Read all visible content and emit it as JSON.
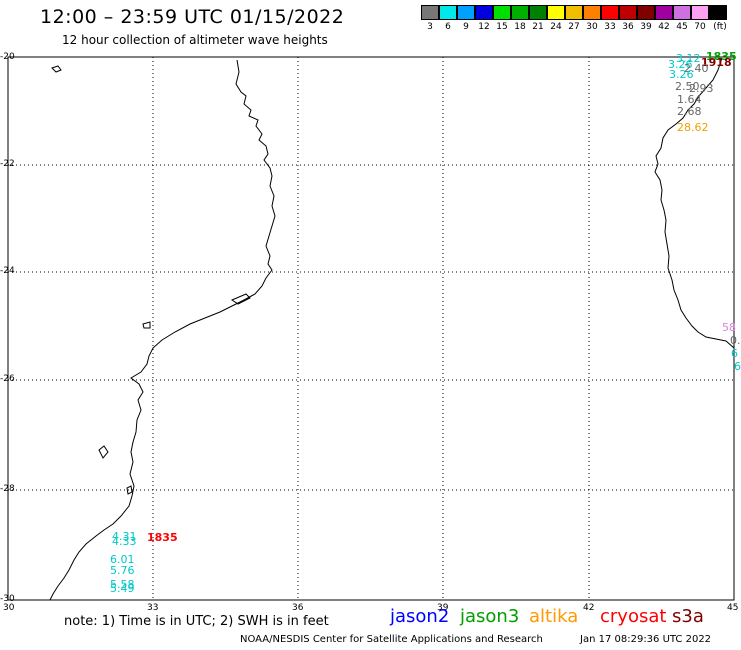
{
  "header": {
    "title": "12:00 – 23:59 UTC 01/15/2022",
    "subtitle": "12 hour collection of altimeter wave heights"
  },
  "legend": {
    "unit": "(ft)",
    "levels": [
      {
        "label": "3",
        "color": "#777777"
      },
      {
        "label": "6",
        "color": "#00e8e8"
      },
      {
        "label": "9",
        "color": "#00a0ff"
      },
      {
        "label": "12",
        "color": "#0000e0"
      },
      {
        "label": "15",
        "color": "#00e000"
      },
      {
        "label": "18",
        "color": "#00b000"
      },
      {
        "label": "21",
        "color": "#008000"
      },
      {
        "label": "24",
        "color": "#ffff00"
      },
      {
        "label": "27",
        "color": "#f0c000"
      },
      {
        "label": "30",
        "color": "#ff8000"
      },
      {
        "label": "33",
        "color": "#ff0000"
      },
      {
        "label": "36",
        "color": "#c00000"
      },
      {
        "label": "39",
        "color": "#800000"
      },
      {
        "label": "42",
        "color": "#a000a0"
      },
      {
        "label": "45",
        "color": "#d070e0"
      },
      {
        "label": "70",
        "color": "#ffa0f0"
      },
      {
        "label": "",
        "color": "#000000"
      }
    ]
  },
  "axes": {
    "lat_labels": [
      "-20",
      "-22",
      "-24",
      "-26",
      "-28",
      "-30"
    ],
    "lon_labels": [
      "30",
      "33",
      "36",
      "39",
      "42",
      "45"
    ]
  },
  "observations": [
    {
      "text": "1835",
      "color": "#00a000",
      "bold": true
    },
    {
      "text": "3.12",
      "color": "#00c8c8"
    },
    {
      "text": "1918",
      "color": "#800000",
      "bold": true
    },
    {
      "text": "3.26",
      "color": "#00c8c8"
    },
    {
      "text": "2.40",
      "color": "#666666"
    },
    {
      "text": "3.26",
      "color": "#00c8c8"
    },
    {
      "text": "2.50",
      "color": "#666666"
    },
    {
      "text": "2.93",
      "color": "#666666"
    },
    {
      "text": "1.64",
      "color": "#666666"
    },
    {
      "text": "2.68",
      "color": "#666666"
    },
    {
      "text": "28.62",
      "color": "#f0a000"
    },
    {
      "text": "58",
      "color": "#e080e0"
    },
    {
      "text": "0.",
      "color": "#666666"
    },
    {
      "text": "6",
      "color": "#00c8c8"
    },
    {
      "text": "6",
      "color": "#00c8c8"
    },
    {
      "text": "4.31",
      "color": "#00c8c8"
    },
    {
      "text": "4.33",
      "color": "#00c8c8"
    },
    {
      "text": "1835",
      "color": "#ff0000",
      "bold": true
    },
    {
      "text": "6.01",
      "color": "#00c8c8"
    },
    {
      "text": "5.76",
      "color": "#00c8c8"
    },
    {
      "text": "5.58",
      "color": "#00c8c8"
    },
    {
      "text": "5.49",
      "color": "#00c8c8"
    }
  ],
  "note": "note: 1) Time is in UTC; 2) SWH is in feet",
  "satellites": [
    {
      "name": "jason2",
      "color": "#0000ff"
    },
    {
      "name": "jason3",
      "color": "#00a000"
    },
    {
      "name": "altika",
      "color": "#ff9900"
    },
    {
      "name": "cryosat",
      "color": "#ff0000"
    },
    {
      "name": "s3a",
      "color": "#800000"
    }
  ],
  "footer": {
    "credit": "NOAA/NESDIS Center for Satellite Applications and Research",
    "timestamp": "Jan 17 08:29:36 UTC 2022"
  }
}
